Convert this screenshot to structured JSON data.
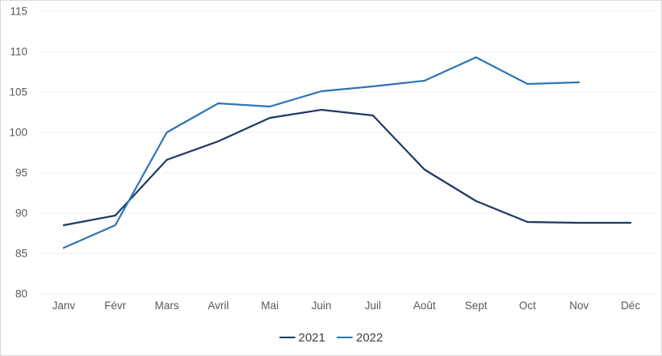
{
  "chart_data": {
    "type": "line",
    "title": "",
    "xlabel": "",
    "ylabel": "",
    "categories": [
      "Janv",
      "Févr",
      "Mars",
      "Avril",
      "Mai",
      "Juin",
      "Juil",
      "Août",
      "Sept",
      "Oct",
      "Nov",
      "Déc"
    ],
    "series": [
      {
        "name": "2021",
        "color": "#1F3864",
        "values": [
          88.5,
          89.7,
          96.6,
          98.9,
          101.8,
          102.8,
          102.1,
          95.4,
          91.5,
          88.9,
          88.8,
          88.8
        ]
      },
      {
        "name": "2022",
        "color": "#2E75B6",
        "values": [
          85.7,
          88.5,
          100.0,
          103.6,
          103.2,
          105.1,
          105.7,
          106.4,
          109.3,
          106.0,
          106.2,
          null
        ]
      }
    ],
    "ylim": [
      80,
      115
    ],
    "yticks": [
      80,
      85,
      90,
      95,
      100,
      105,
      110,
      115
    ],
    "grid": true,
    "gridline_color": "#ECECEC",
    "axis_tick_label_color": "#595959",
    "legend_text_color": "#404040",
    "legend_position": "bottom-center",
    "frame_border_color": "#D9D9D9"
  }
}
